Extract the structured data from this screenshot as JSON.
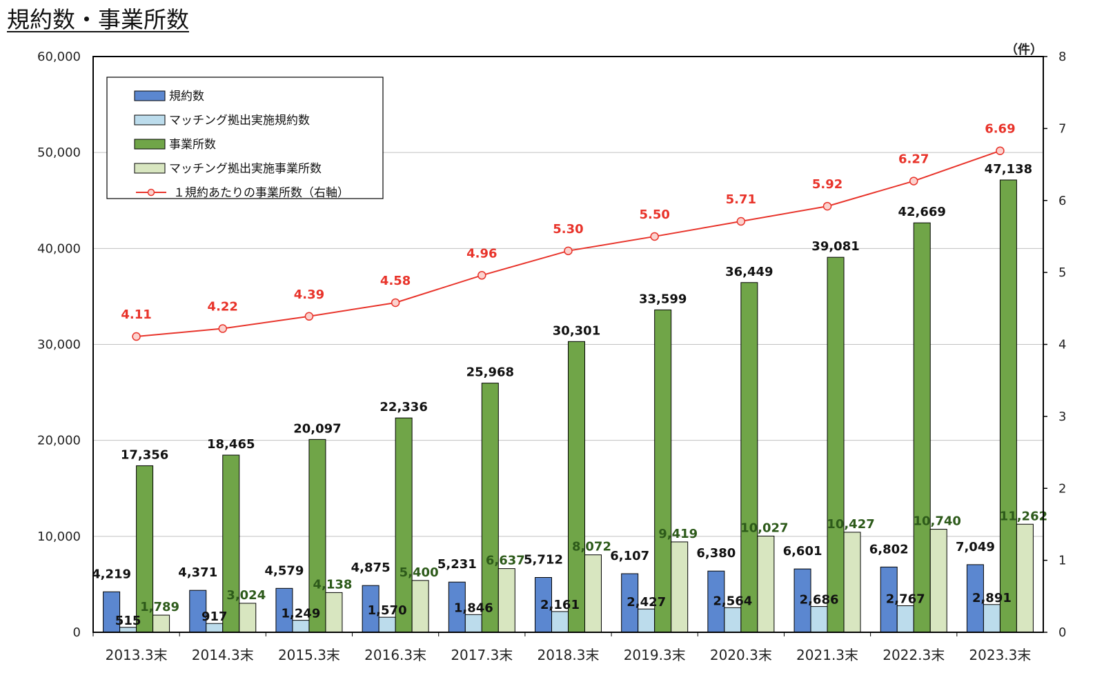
{
  "page": {
    "title": "規約数・事業所数"
  },
  "chart_data": {
    "type": "bar",
    "categories": [
      "2013.3末",
      "2014.3末",
      "2015.3末",
      "2016.3末",
      "2017.3末",
      "2018.3末",
      "2019.3末",
      "2020.3末",
      "2021.3末",
      "2022.3末",
      "2023.3末"
    ],
    "left_axis": {
      "ylim": [
        0,
        60000
      ],
      "ticks": [
        "0",
        "10,000",
        "20,000",
        "30,000",
        "40,000",
        "50,000",
        "60,000"
      ]
    },
    "right_axis": {
      "ylim": [
        0,
        8
      ],
      "ticks": [
        "0",
        "1",
        "2",
        "3",
        "4",
        "5",
        "6",
        "7",
        "8"
      ],
      "unit_label": "（件）"
    },
    "series": [
      {
        "name": "規約数",
        "axis": "left",
        "kind": "bar",
        "color": "#5b87d0",
        "values": [
          4219,
          4371,
          4579,
          4875,
          5231,
          5712,
          6107,
          6380,
          6601,
          6802,
          7049
        ],
        "labels": [
          "4,219",
          "4,371",
          "4,579",
          "4,875",
          "5,231",
          "5,712",
          "6,107",
          "6,380",
          "6,601",
          "6,802",
          "7,049"
        ]
      },
      {
        "name": "マッチング拠出実施規約数",
        "axis": "left",
        "kind": "bar",
        "color": "#bcdcec",
        "values": [
          515,
          917,
          1249,
          1570,
          1846,
          2161,
          2427,
          2564,
          2686,
          2767,
          2891
        ],
        "labels": [
          "515",
          "917",
          "1,249",
          "1,570",
          "1,846",
          "2,161",
          "2,427",
          "2,564",
          "2,686",
          "2,767",
          "2,891"
        ]
      },
      {
        "name": "事業所数",
        "axis": "left",
        "kind": "bar",
        "color": "#70a548",
        "values": [
          17356,
          18465,
          20097,
          22336,
          25968,
          30301,
          33599,
          36449,
          39081,
          42669,
          47138
        ],
        "labels": [
          "17,356",
          "18,465",
          "20,097",
          "22,336",
          "25,968",
          "30,301",
          "33,599",
          "36,449",
          "39,081",
          "42,669",
          "47,138"
        ]
      },
      {
        "name": "マッチング拠出実施事業所数",
        "axis": "left",
        "kind": "bar",
        "color": "#d8e6c0",
        "values": [
          1789,
          3024,
          4138,
          5400,
          6637,
          8072,
          9419,
          10027,
          10427,
          10740,
          11262
        ],
        "labels": [
          "1,789",
          "3,024",
          "4,138",
          "5,400",
          "6,637",
          "8,072",
          "9,419",
          "10,027",
          "10,427",
          "10,740",
          "11,262"
        ]
      },
      {
        "name": "１規約あたりの事業所数（右軸）",
        "axis": "right",
        "kind": "line",
        "color": "#e8332a",
        "values": [
          4.11,
          4.22,
          4.39,
          4.58,
          4.96,
          5.3,
          5.5,
          5.71,
          5.92,
          6.27,
          6.69
        ],
        "labels": [
          "4.11",
          "4.22",
          "4.39",
          "4.58",
          "4.96",
          "5.30",
          "5.50",
          "5.71",
          "5.92",
          "6.27",
          "6.69"
        ]
      }
    ],
    "colors": {
      "bar_label": "#111111",
      "matching_office_label": "#2d5a1a",
      "line_label": "#e8332a"
    },
    "grid": true,
    "legend_position": "top-left"
  }
}
